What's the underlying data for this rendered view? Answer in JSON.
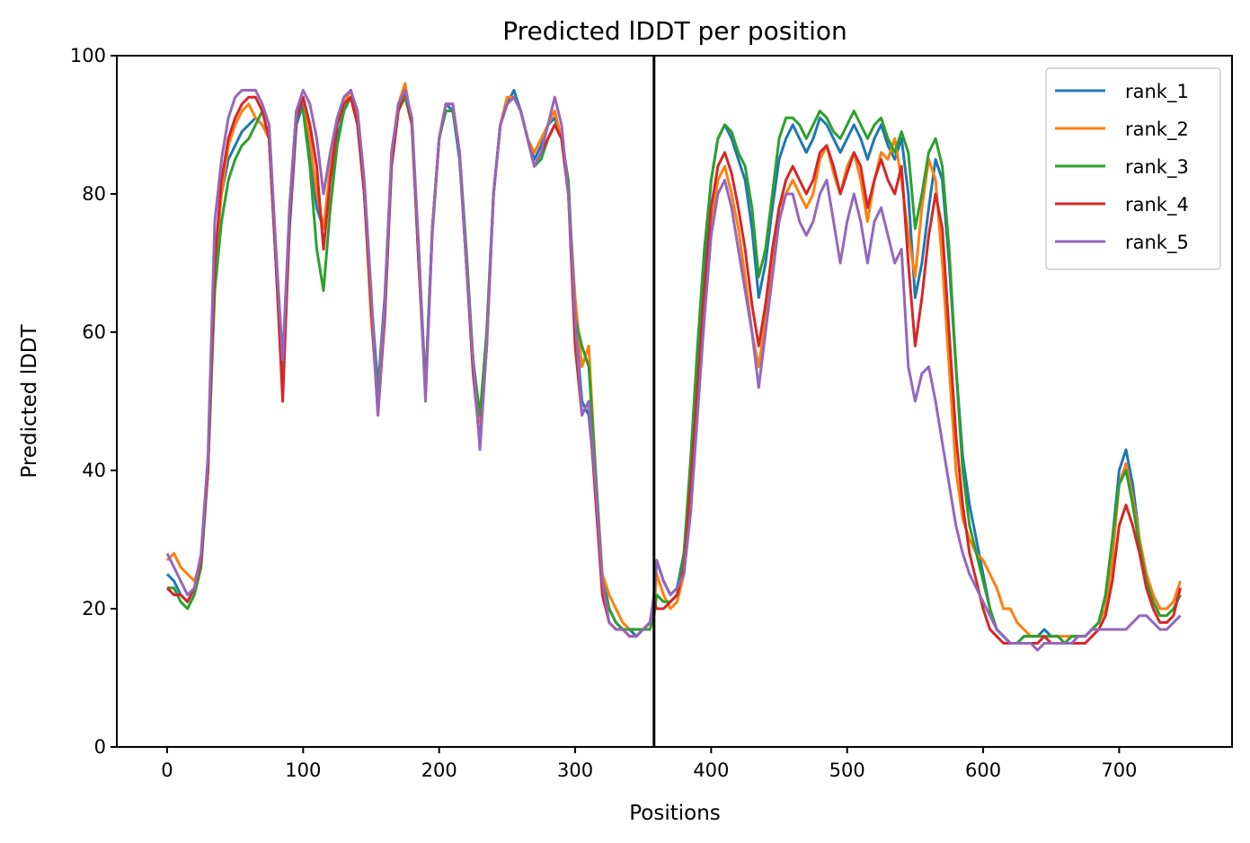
{
  "chart_data": {
    "type": "line",
    "title": "Predicted lDDT per position",
    "xlabel": "Positions",
    "ylabel": "Predicted lDDT",
    "xlim": [
      -37,
      783
    ],
    "ylim": [
      0,
      100
    ],
    "xticks": [
      0,
      100,
      200,
      300,
      400,
      500,
      600,
      700
    ],
    "yticks": [
      0,
      20,
      40,
      60,
      80,
      100
    ],
    "grid": false,
    "legend_position": "top-right",
    "vertical_line": {
      "x": 358,
      "color": "#000000"
    },
    "x": [
      0,
      5,
      10,
      15,
      20,
      25,
      30,
      35,
      40,
      45,
      50,
      55,
      60,
      65,
      70,
      75,
      80,
      85,
      90,
      95,
      100,
      105,
      110,
      115,
      120,
      125,
      130,
      135,
      140,
      145,
      150,
      155,
      160,
      165,
      170,
      175,
      180,
      185,
      190,
      195,
      200,
      205,
      210,
      215,
      220,
      225,
      230,
      235,
      240,
      245,
      250,
      255,
      260,
      265,
      270,
      275,
      280,
      285,
      290,
      295,
      300,
      305,
      310,
      315,
      320,
      325,
      330,
      335,
      340,
      345,
      350,
      355,
      358,
      360,
      365,
      370,
      375,
      380,
      385,
      390,
      395,
      400,
      405,
      410,
      415,
      420,
      425,
      430,
      435,
      440,
      445,
      450,
      455,
      460,
      465,
      470,
      475,
      480,
      485,
      490,
      495,
      500,
      505,
      510,
      515,
      520,
      525,
      530,
      535,
      540,
      545,
      550,
      555,
      560,
      565,
      570,
      575,
      580,
      585,
      590,
      595,
      600,
      605,
      610,
      615,
      620,
      625,
      630,
      635,
      640,
      645,
      650,
      655,
      660,
      665,
      670,
      675,
      680,
      685,
      690,
      695,
      700,
      705,
      710,
      715,
      720,
      725,
      730,
      735,
      740,
      745
    ],
    "series": [
      {
        "name": "rank_1",
        "color": "#1f77b4",
        "values": [
          25,
          24,
          22,
          21,
          23,
          27,
          40,
          70,
          80,
          85,
          87,
          89,
          90,
          91,
          90,
          88,
          70,
          52,
          75,
          90,
          93,
          85,
          78,
          75,
          82,
          88,
          92,
          94,
          90,
          80,
          65,
          52,
          65,
          85,
          93,
          95,
          90,
          70,
          52,
          75,
          88,
          93,
          92,
          85,
          70,
          55,
          47,
          60,
          80,
          90,
          93,
          95,
          92,
          88,
          85,
          87,
          90,
          91,
          88,
          80,
          62,
          50,
          48,
          38,
          25,
          20,
          18,
          17,
          17,
          16,
          17,
          18,
          20,
          27,
          24,
          22,
          23,
          28,
          40,
          55,
          70,
          82,
          88,
          90,
          88,
          85,
          82,
          75,
          65,
          70,
          78,
          85,
          88,
          90,
          88,
          86,
          88,
          91,
          90,
          88,
          86,
          88,
          90,
          88,
          85,
          88,
          90,
          87,
          85,
          88,
          80,
          65,
          70,
          78,
          85,
          82,
          70,
          55,
          42,
          35,
          30,
          25,
          20,
          17,
          16,
          15,
          15,
          16,
          16,
          16,
          17,
          16,
          16,
          15,
          16,
          16,
          16,
          17,
          18,
          22,
          30,
          40,
          43,
          38,
          30,
          25,
          22,
          20,
          20,
          21,
          23
        ]
      },
      {
        "name": "rank_2",
        "color": "#ff7f0e",
        "values": [
          27,
          28,
          26,
          25,
          24,
          27,
          40,
          70,
          80,
          87,
          90,
          92,
          93,
          91,
          90,
          88,
          72,
          53,
          78,
          92,
          94,
          88,
          80,
          75,
          84,
          90,
          93,
          95,
          91,
          80,
          62,
          50,
          64,
          85,
          93,
          96,
          90,
          70,
          52,
          74,
          88,
          93,
          93,
          86,
          70,
          56,
          47,
          58,
          80,
          90,
          94,
          94,
          92,
          88,
          86,
          88,
          90,
          92,
          88,
          80,
          65,
          55,
          58,
          40,
          25,
          22,
          20,
          18,
          17,
          17,
          17,
          18,
          20,
          25,
          22,
          20,
          21,
          25,
          35,
          50,
          65,
          75,
          82,
          84,
          80,
          75,
          68,
          60,
          55,
          62,
          70,
          78,
          80,
          82,
          80,
          78,
          80,
          85,
          87,
          83,
          80,
          84,
          86,
          82,
          76,
          82,
          86,
          85,
          88,
          82,
          74,
          68,
          78,
          85,
          82,
          70,
          55,
          40,
          33,
          30,
          28,
          27,
          25,
          23,
          20,
          20,
          18,
          17,
          16,
          16,
          16,
          16,
          16,
          16,
          16,
          16,
          16,
          17,
          18,
          20,
          27,
          38,
          41,
          36,
          30,
          25,
          22,
          20,
          20,
          21,
          24
        ]
      },
      {
        "name": "rank_3",
        "color": "#2ca02c",
        "values": [
          23,
          23,
          21,
          20,
          22,
          26,
          40,
          66,
          76,
          82,
          85,
          87,
          88,
          90,
          92,
          88,
          70,
          52,
          78,
          92,
          92,
          84,
          72,
          66,
          78,
          87,
          92,
          94,
          90,
          80,
          64,
          50,
          62,
          84,
          92,
          94,
          90,
          72,
          52,
          75,
          88,
          92,
          92,
          86,
          72,
          56,
          48,
          60,
          80,
          90,
          93,
          94,
          92,
          88,
          84,
          85,
          88,
          90,
          88,
          82,
          62,
          58,
          55,
          40,
          24,
          20,
          18,
          17,
          17,
          17,
          17,
          17,
          19,
          22,
          21,
          21,
          22,
          28,
          42,
          58,
          72,
          82,
          88,
          90,
          89,
          86,
          84,
          78,
          68,
          72,
          80,
          88,
          91,
          91,
          90,
          88,
          90,
          92,
          91,
          89,
          88,
          90,
          92,
          90,
          88,
          90,
          91,
          88,
          86,
          89,
          86,
          75,
          80,
          86,
          88,
          84,
          72,
          55,
          40,
          32,
          28,
          24,
          20,
          17,
          16,
          15,
          15,
          16,
          16,
          16,
          16,
          16,
          16,
          15,
          16,
          16,
          16,
          17,
          18,
          22,
          30,
          38,
          40,
          35,
          29,
          24,
          21,
          19,
          19,
          20,
          22
        ]
      },
      {
        "name": "rank_4",
        "color": "#d62728",
        "values": [
          23,
          22,
          22,
          21,
          23,
          27,
          40,
          70,
          82,
          88,
          91,
          93,
          94,
          94,
          92,
          88,
          70,
          50,
          76,
          91,
          94,
          90,
          84,
          72,
          82,
          90,
          93,
          94,
          90,
          80,
          64,
          48,
          62,
          84,
          92,
          95,
          90,
          70,
          51,
          75,
          88,
          93,
          93,
          86,
          70,
          54,
          44,
          58,
          80,
          90,
          93,
          94,
          92,
          88,
          84,
          86,
          88,
          90,
          88,
          80,
          58,
          48,
          50,
          36,
          22,
          18,
          17,
          17,
          16,
          16,
          17,
          18,
          21,
          20,
          20,
          21,
          22,
          26,
          38,
          52,
          66,
          78,
          84,
          86,
          83,
          78,
          72,
          64,
          58,
          64,
          72,
          78,
          82,
          84,
          82,
          80,
          82,
          86,
          87,
          84,
          80,
          83,
          86,
          84,
          78,
          82,
          85,
          82,
          80,
          84,
          70,
          58,
          65,
          74,
          80,
          75,
          60,
          45,
          35,
          28,
          24,
          20,
          17,
          16,
          15,
          15,
          15,
          15,
          15,
          15,
          16,
          15,
          15,
          15,
          15,
          15,
          15,
          16,
          17,
          19,
          24,
          32,
          35,
          32,
          28,
          23,
          20,
          18,
          18,
          19,
          23
        ]
      },
      {
        "name": "rank_5",
        "color": "#9467bd",
        "values": [
          28,
          26,
          24,
          22,
          23,
          28,
          42,
          76,
          85,
          91,
          94,
          95,
          95,
          95,
          93,
          90,
          72,
          56,
          78,
          92,
          95,
          93,
          88,
          80,
          86,
          91,
          94,
          95,
          92,
          82,
          66,
          48,
          64,
          86,
          93,
          95,
          91,
          72,
          50,
          75,
          88,
          93,
          93,
          86,
          70,
          56,
          43,
          58,
          80,
          90,
          93,
          94,
          92,
          88,
          84,
          86,
          90,
          94,
          90,
          80,
          62,
          48,
          50,
          38,
          24,
          18,
          17,
          17,
          16,
          16,
          17,
          18,
          22,
          27,
          24,
          22,
          23,
          25,
          34,
          48,
          62,
          74,
          80,
          82,
          78,
          72,
          66,
          60,
          52,
          60,
          68,
          76,
          80,
          80,
          76,
          74,
          76,
          80,
          82,
          76,
          70,
          76,
          80,
          76,
          70,
          76,
          78,
          74,
          70,
          72,
          55,
          50,
          54,
          55,
          50,
          44,
          38,
          32,
          28,
          25,
          23,
          21,
          19,
          17,
          16,
          15,
          15,
          15,
          15,
          14,
          15,
          15,
          15,
          15,
          15,
          16,
          16,
          17,
          17,
          17,
          17,
          17,
          17,
          18,
          19,
          19,
          18,
          17,
          17,
          18,
          19
        ]
      }
    ]
  }
}
